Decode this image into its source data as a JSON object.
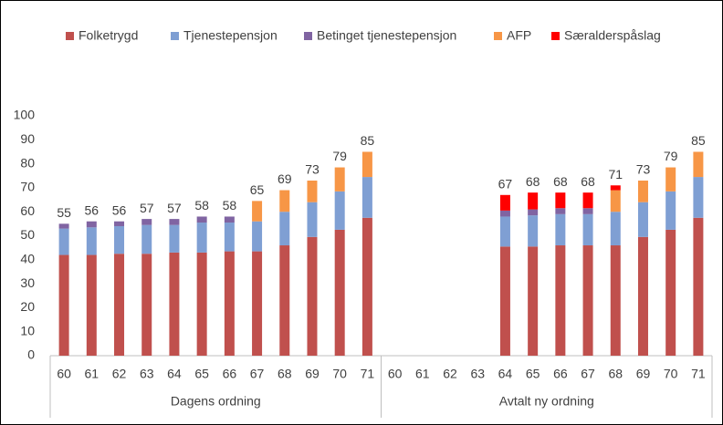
{
  "chart_data": {
    "type": "bar",
    "stacked": true,
    "groups": [
      {
        "name": "Dagens ordning",
        "categories": [
          "60",
          "61",
          "62",
          "63",
          "64",
          "65",
          "66",
          "67",
          "68",
          "69",
          "70",
          "71"
        ]
      },
      {
        "name": "Avtalt ny ordning",
        "categories": [
          "60",
          "61",
          "62",
          "63",
          "64",
          "65",
          "66",
          "67",
          "68",
          "69",
          "70",
          "71"
        ]
      }
    ],
    "series": [
      {
        "name": "Folketrygd",
        "color": "#c0504d",
        "values": [
          42,
          42,
          42.5,
          42.5,
          43,
          43,
          43.5,
          43.5,
          46,
          49.5,
          52.5,
          57.5,
          null,
          null,
          null,
          null,
          45.5,
          45.5,
          46,
          46,
          46,
          49.5,
          52.5,
          57.5
        ]
      },
      {
        "name": "Tjenestepensjon",
        "color": "#7f9fd3",
        "values": [
          11,
          11.5,
          11.5,
          12,
          11.5,
          12.5,
          12,
          12.5,
          14,
          14.5,
          16,
          17,
          null,
          null,
          null,
          null,
          12.5,
          13,
          13,
          13,
          14,
          14.5,
          16,
          17
        ]
      },
      {
        "name": "Betinget tjenestepensjon",
        "color": "#8064a2",
        "values": [
          2,
          2.5,
          2,
          2.5,
          2.5,
          2.5,
          2.5,
          null,
          null,
          null,
          null,
          null,
          null,
          null,
          null,
          null,
          2.5,
          2.5,
          2.5,
          2.5,
          null,
          null,
          null,
          null
        ]
      },
      {
        "name": "AFP",
        "color": "#f79646",
        "values": [
          null,
          null,
          null,
          null,
          null,
          null,
          null,
          8.5,
          9,
          9,
          10,
          10.5,
          null,
          null,
          null,
          null,
          null,
          null,
          null,
          null,
          9,
          9,
          10,
          10.5
        ]
      },
      {
        "name": "Særalderspåslag",
        "color": "#ff0000",
        "values": [
          null,
          null,
          null,
          null,
          null,
          null,
          null,
          null,
          null,
          null,
          null,
          null,
          null,
          null,
          null,
          null,
          6.5,
          7,
          6.5,
          6.5,
          2,
          null,
          null,
          null
        ]
      }
    ],
    "totals": [
      55,
      56,
      56,
      57,
      57,
      58,
      58,
      65,
      69,
      73,
      79,
      85,
      null,
      null,
      null,
      null,
      67,
      68,
      68,
      68,
      71,
      73,
      79,
      85
    ],
    "ylim": [
      0,
      100
    ],
    "yticks": [
      0,
      10,
      20,
      30,
      40,
      50,
      60,
      70,
      80,
      90,
      100
    ],
    "grid": false,
    "legend": "top"
  }
}
